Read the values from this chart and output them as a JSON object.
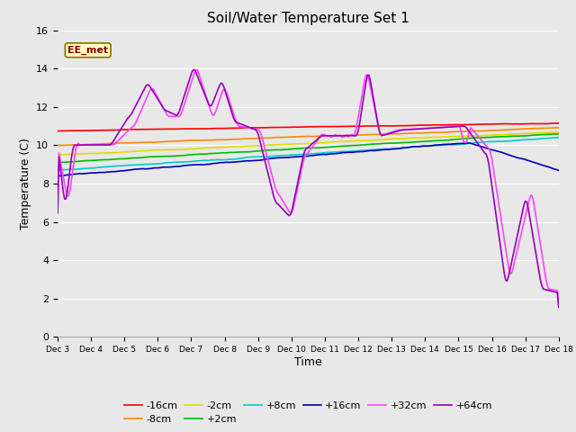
{
  "title": "Soil/Water Temperature Set 1",
  "xlabel": "Time",
  "ylabel": "Temperature (C)",
  "ylim": [
    0,
    16
  ],
  "background_color": "#e8e8e8",
  "plot_bg": "#e8e8e8",
  "annotation_text": "EE_met",
  "annotation_color": "#8b0000",
  "annotation_bg": "#ffffc0",
  "series": {
    "-16cm": {
      "color": "#ff0000",
      "lw": 1.2
    },
    "-8cm": {
      "color": "#ff8800",
      "lw": 1.2
    },
    "-2cm": {
      "color": "#dddd00",
      "lw": 1.2
    },
    "+2cm": {
      "color": "#00bb00",
      "lw": 1.2
    },
    "+8cm": {
      "color": "#00cccc",
      "lw": 1.2
    },
    "+16cm": {
      "color": "#0000bb",
      "lw": 1.2
    },
    "+32cm": {
      "color": "#ff44ff",
      "lw": 1.2
    },
    "+64cm": {
      "color": "#9900bb",
      "lw": 1.2
    }
  }
}
